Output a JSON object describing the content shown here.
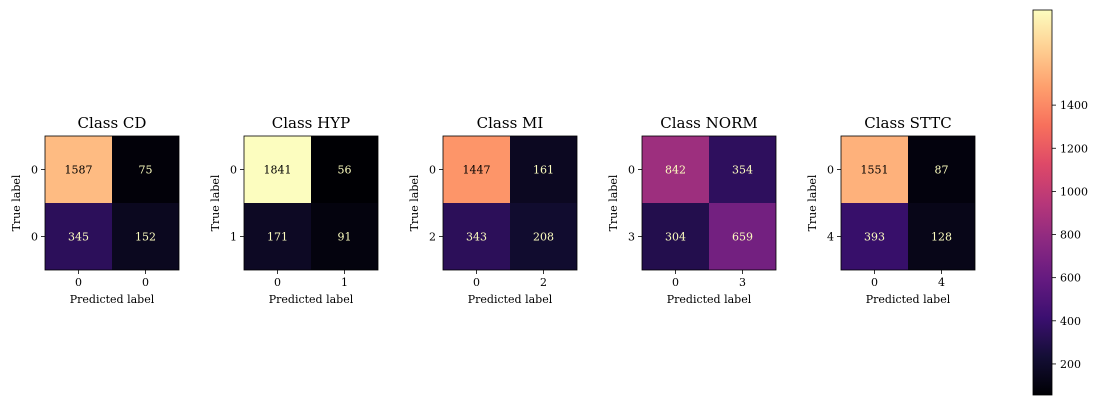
{
  "chart_data": [
    {
      "type": "heatmap",
      "title": "Class CD",
      "xlabel": "Predicted label",
      "ylabel": "True label",
      "x_tick_labels": [
        "0",
        "0"
      ],
      "y_tick_labels": [
        "0",
        "0"
      ],
      "values": [
        [
          1587,
          75
        ],
        [
          345,
          152
        ]
      ]
    },
    {
      "type": "heatmap",
      "title": "Class HYP",
      "xlabel": "Predicted label",
      "ylabel": "True label",
      "x_tick_labels": [
        "0",
        "1"
      ],
      "y_tick_labels": [
        "0",
        "1"
      ],
      "values": [
        [
          1841,
          56
        ],
        [
          171,
          91
        ]
      ]
    },
    {
      "type": "heatmap",
      "title": "Class MI",
      "xlabel": "Predicted label",
      "ylabel": "True label",
      "x_tick_labels": [
        "0",
        "2"
      ],
      "y_tick_labels": [
        "0",
        "2"
      ],
      "values": [
        [
          1447,
          161
        ],
        [
          343,
          208
        ]
      ]
    },
    {
      "type": "heatmap",
      "title": "Class NORM",
      "xlabel": "Predicted label",
      "ylabel": "True label",
      "x_tick_labels": [
        "0",
        "3"
      ],
      "y_tick_labels": [
        "0",
        "3"
      ],
      "values": [
        [
          842,
          354
        ],
        [
          304,
          659
        ]
      ]
    },
    {
      "type": "heatmap",
      "title": "Class STTC",
      "xlabel": "Predicted label",
      "ylabel": "True label",
      "x_tick_labels": [
        "0",
        "4"
      ],
      "y_tick_labels": [
        "0",
        "4"
      ],
      "values": [
        [
          1551,
          87
        ],
        [
          393,
          128
        ]
      ]
    }
  ],
  "colorbar": {
    "colormap": "magma",
    "range": [
      56,
      1841
    ],
    "ticks": [
      200,
      400,
      600,
      800,
      1000,
      1200,
      1400
    ]
  }
}
